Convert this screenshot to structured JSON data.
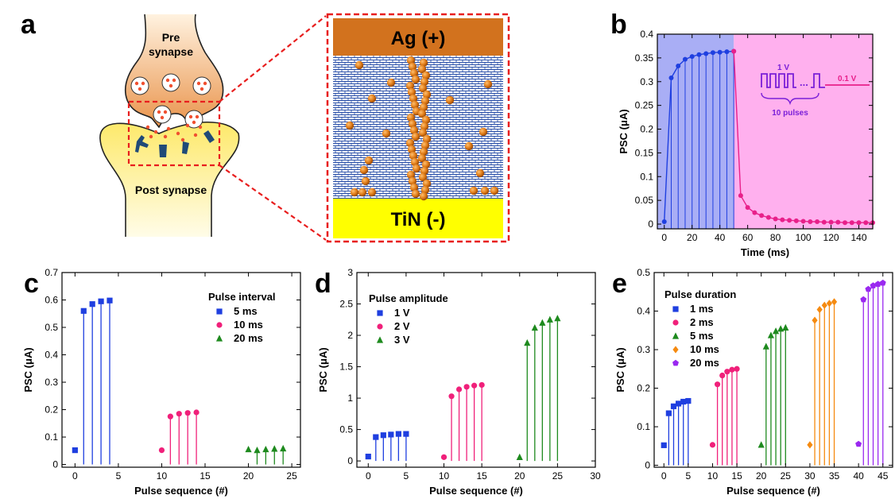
{
  "panel_labels": [
    "a",
    "b",
    "c",
    "d",
    "e"
  ],
  "colors": {
    "blue": "#1f3fe0",
    "pink": "#f0207a",
    "green": "#1e8a1e",
    "orange": "#f58a10",
    "purple": "#9a28f0",
    "ag_layer": "#d2721e",
    "tin_layer": "#ffff00",
    "particle": "#e07c18",
    "zoom_frame": "#e81e1e"
  },
  "diagram": {
    "pre_label": "Pre\nsynapse",
    "post_label": "Post synapse",
    "top_electrode": "Ag (+)",
    "bottom_electrode": "TiN (-)"
  },
  "chart_data": [
    {
      "panel": "b",
      "type": "line",
      "xlabel": "Time (ms)",
      "ylabel": "PSC (μA)",
      "xlim": [
        -5,
        150
      ],
      "ylim": [
        -0.01,
        0.4
      ],
      "xticks": [
        0,
        20,
        40,
        60,
        80,
        100,
        120,
        140
      ],
      "yticks": [
        0,
        0.05,
        0.1,
        0.15,
        0.2,
        0.25,
        0.3,
        0.35,
        0.4
      ],
      "shaded_regions": [
        {
          "x0": -5,
          "x1": 50,
          "color": "#a9aef5"
        },
        {
          "x0": 50,
          "x1": 150,
          "color": "#ffb0ee"
        }
      ],
      "inset": {
        "pulse_label": "1 V",
        "read_label": "0.1 V",
        "pulses_label": "10 pulses",
        "dots": "..."
      },
      "series": [
        {
          "color": "#1f3fe0",
          "x": [
            0,
            5,
            10,
            15,
            20,
            25,
            30,
            35,
            40,
            45,
            50
          ],
          "y": [
            0.005,
            0.308,
            0.333,
            0.347,
            0.353,
            0.357,
            0.359,
            0.361,
            0.362,
            0.363,
            0.364
          ]
        },
        {
          "color": "#e8208a",
          "x": [
            50,
            55,
            60,
            65,
            70,
            75,
            80,
            85,
            90,
            95,
            100,
            105,
            110,
            115,
            120,
            125,
            130,
            135,
            140,
            145,
            150
          ],
          "y": [
            0.364,
            0.06,
            0.035,
            0.024,
            0.018,
            0.014,
            0.011,
            0.009,
            0.008,
            0.007,
            0.006,
            0.005,
            0.005,
            0.004,
            0.004,
            0.004,
            0.003,
            0.003,
            0.003,
            0.003,
            0.003
          ]
        }
      ]
    },
    {
      "panel": "c",
      "type": "scatter",
      "xlabel": "Pulse sequence (#)",
      "ylabel": "PSC (μA)",
      "xlim": [
        -1.5,
        26
      ],
      "ylim": [
        -0.01,
        0.7
      ],
      "xticks": [
        0,
        5,
        10,
        15,
        20,
        25
      ],
      "yticks": [
        0,
        0.1,
        0.2,
        0.3,
        0.4,
        0.5,
        0.6,
        0.7
      ],
      "legend_title": "Pulse interval",
      "series": [
        {
          "name": "5 ms",
          "color": "#1f3fe0",
          "marker": "square",
          "x": [
            0,
            1,
            2,
            3,
            4
          ],
          "y": [
            0.052,
            0.56,
            0.585,
            0.595,
            0.598
          ]
        },
        {
          "name": "10 ms",
          "color": "#f0207a",
          "marker": "circle",
          "x": [
            10,
            11,
            12,
            13,
            14
          ],
          "y": [
            0.052,
            0.175,
            0.185,
            0.188,
            0.19
          ]
        },
        {
          "name": "20 ms",
          "color": "#1e8a1e",
          "marker": "triangle",
          "x": [
            20,
            21,
            22,
            23,
            24
          ],
          "y": [
            0.055,
            0.052,
            0.055,
            0.057,
            0.058
          ]
        }
      ]
    },
    {
      "panel": "d",
      "type": "scatter",
      "xlabel": "Pulse sequence (#)",
      "ylabel": "PSC (μA)",
      "xlim": [
        -1.5,
        30
      ],
      "ylim": [
        -0.1,
        3
      ],
      "xticks": [
        0,
        5,
        10,
        15,
        20,
        25,
        30
      ],
      "yticks": [
        0,
        0.5,
        1,
        1.5,
        2,
        2.5,
        3
      ],
      "legend_title": "Pulse amplitude",
      "series": [
        {
          "name": "1 V",
          "color": "#1f3fe0",
          "marker": "square",
          "x": [
            0,
            1,
            2,
            3,
            4,
            5
          ],
          "y": [
            0.07,
            0.38,
            0.41,
            0.42,
            0.43,
            0.43
          ]
        },
        {
          "name": "2 V",
          "color": "#f0207a",
          "marker": "circle",
          "x": [
            10,
            11,
            12,
            13,
            14,
            15
          ],
          "y": [
            0.06,
            1.03,
            1.14,
            1.18,
            1.2,
            1.21
          ]
        },
        {
          "name": "3 V",
          "color": "#1e8a1e",
          "marker": "triangle",
          "x": [
            20,
            21,
            22,
            23,
            24,
            25
          ],
          "y": [
            0.06,
            1.88,
            2.12,
            2.2,
            2.25,
            2.27
          ]
        }
      ]
    },
    {
      "panel": "e",
      "type": "scatter",
      "xlabel": "Pulse sequence (#)",
      "ylabel": "PSC (μA)",
      "xlim": [
        -2,
        47
      ],
      "ylim": [
        -0.005,
        0.5
      ],
      "xticks": [
        0,
        5,
        10,
        15,
        20,
        25,
        30,
        35,
        40,
        45
      ],
      "yticks": [
        0,
        0.1,
        0.2,
        0.3,
        0.4,
        0.5
      ],
      "legend_title": "Pulse duration",
      "series": [
        {
          "name": "1 ms",
          "color": "#1f3fe0",
          "marker": "square",
          "x": [
            0,
            1,
            2,
            3,
            4,
            5
          ],
          "y": [
            0.052,
            0.135,
            0.153,
            0.16,
            0.165,
            0.167
          ]
        },
        {
          "name": "2 ms",
          "color": "#f0207a",
          "marker": "circle",
          "x": [
            10,
            11,
            12,
            13,
            14,
            15
          ],
          "y": [
            0.053,
            0.21,
            0.233,
            0.243,
            0.248,
            0.25
          ]
        },
        {
          "name": "5 ms",
          "color": "#1e8a1e",
          "marker": "triangle",
          "x": [
            20,
            21,
            22,
            23,
            24,
            25
          ],
          "y": [
            0.053,
            0.308,
            0.337,
            0.348,
            0.354,
            0.357
          ]
        },
        {
          "name": "10 ms",
          "color": "#f58a10",
          "marker": "diamond",
          "x": [
            30,
            31,
            32,
            33,
            34,
            35
          ],
          "y": [
            0.053,
            0.376,
            0.404,
            0.415,
            0.42,
            0.424
          ]
        },
        {
          "name": "20 ms",
          "color": "#9a28f0",
          "marker": "pentagon",
          "x": [
            40,
            41,
            42,
            43,
            44,
            45
          ],
          "y": [
            0.055,
            0.43,
            0.457,
            0.466,
            0.47,
            0.473
          ]
        }
      ]
    }
  ]
}
